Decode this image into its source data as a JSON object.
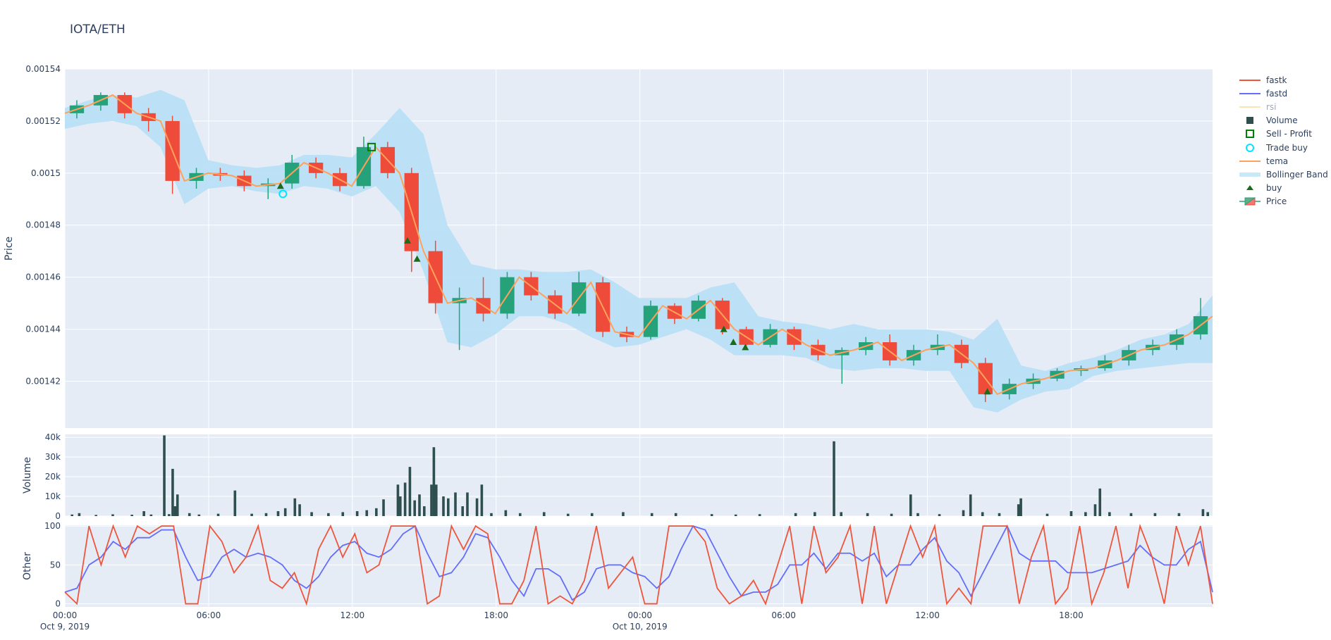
{
  "title": "IOTA/ETH",
  "colors": {
    "increasing": "#26a27b",
    "decreasing": "#ef4b3a",
    "tema": "#ffa15a",
    "bollinger": "#b9e0f5",
    "volume": "#2f4f4f",
    "fastk": "#ef553b",
    "fastd": "#636efa",
    "rsi": "#ffe4b3",
    "buy": "#1a6b1a",
    "trade_buy": "#00e5ff",
    "sell_profit": "#008000",
    "plot_bg": "#e5ecf6"
  },
  "legend": [
    {
      "name": "fastk",
      "symbol": "line",
      "color": "#ef553b"
    },
    {
      "name": "fastd",
      "symbol": "line",
      "color": "#636efa"
    },
    {
      "name": "rsi",
      "symbol": "line",
      "color": "#ffe4b3",
      "hidden": true
    },
    {
      "name": "Volume",
      "symbol": "square",
      "color": "#2f4f4f"
    },
    {
      "name": "Sell - Profit",
      "symbol": "square-open",
      "color": "#008000"
    },
    {
      "name": "Trade buy",
      "symbol": "circle-open",
      "color": "#00e5ff"
    },
    {
      "name": "tema",
      "symbol": "line",
      "color": "#ffa15a"
    },
    {
      "name": "Bollinger Band",
      "symbol": "band",
      "color": "#c8e9f8"
    },
    {
      "name": "buy",
      "symbol": "triangle-up",
      "color": "#1a6b1a"
    },
    {
      "name": "Price",
      "symbol": "candle",
      "color": "#26a27b"
    }
  ],
  "chart_data": {
    "type": "candlestick",
    "grid": true,
    "legend_position": "right",
    "x_axis": {
      "unit": "hours since Oct 9, 2019 00:00",
      "range": [
        0,
        47.9
      ],
      "ticks": [
        {
          "value": 0,
          "label": "00:00",
          "sub": "Oct 9, 2019"
        },
        {
          "value": 6,
          "label": "06:00",
          "sub": ""
        },
        {
          "value": 12,
          "label": "12:00",
          "sub": ""
        },
        {
          "value": 18,
          "label": "18:00",
          "sub": ""
        },
        {
          "value": 24,
          "label": "00:00",
          "sub": "Oct 10, 2019"
        },
        {
          "value": 30,
          "label": "06:00",
          "sub": ""
        },
        {
          "value": 36,
          "label": "12:00",
          "sub": ""
        },
        {
          "value": 42,
          "label": "18:00",
          "sub": ""
        }
      ]
    },
    "price_panel": {
      "ylabel": "Price",
      "ylim": [
        0.001402,
        0.00154
      ],
      "yticks": [
        "0.00142",
        "0.00144",
        "0.00146",
        "0.00148",
        "0.0015",
        "0.00152",
        "0.00154"
      ],
      "candles_ohlc": [
        [
          0.001523,
          0.001528,
          0.001521,
          0.001526
        ],
        [
          0.001526,
          0.001531,
          0.001524,
          0.00153
        ],
        [
          0.00153,
          0.001531,
          0.001521,
          0.001523
        ],
        [
          0.001523,
          0.001525,
          0.001516,
          0.00152
        ],
        [
          0.00152,
          0.001522,
          0.001492,
          0.001497
        ],
        [
          0.001497,
          0.001502,
          0.001494,
          0.0015
        ],
        [
          0.0015,
          0.001502,
          0.001497,
          0.001499
        ],
        [
          0.001499,
          0.001501,
          0.001493,
          0.001495
        ],
        [
          0.001495,
          0.001498,
          0.00149,
          0.001496
        ],
        [
          0.001496,
          0.001507,
          0.001494,
          0.001504
        ],
        [
          0.001504,
          0.001506,
          0.001498,
          0.0015
        ],
        [
          0.0015,
          0.001502,
          0.001493,
          0.001495
        ],
        [
          0.001495,
          0.001514,
          0.001494,
          0.00151
        ],
        [
          0.00151,
          0.001512,
          0.001498,
          0.0015
        ],
        [
          0.0015,
          0.001502,
          0.001462,
          0.00147
        ],
        [
          0.00147,
          0.001474,
          0.001446,
          0.00145
        ],
        [
          0.00145,
          0.001456,
          0.001432,
          0.001452
        ],
        [
          0.001452,
          0.00146,
          0.001443,
          0.001446
        ],
        [
          0.001446,
          0.001462,
          0.001444,
          0.00146
        ],
        [
          0.00146,
          0.001462,
          0.001451,
          0.001453
        ],
        [
          0.001453,
          0.001455,
          0.001444,
          0.001446
        ],
        [
          0.001446,
          0.001462,
          0.001445,
          0.001458
        ],
        [
          0.001458,
          0.00146,
          0.001437,
          0.001439
        ],
        [
          0.001439,
          0.001441,
          0.001435,
          0.001437
        ],
        [
          0.001437,
          0.001451,
          0.001436,
          0.001449
        ],
        [
          0.001449,
          0.00145,
          0.001442,
          0.001444
        ],
        [
          0.001444,
          0.001453,
          0.001443,
          0.001451
        ],
        [
          0.001451,
          0.001452,
          0.001438,
          0.00144
        ],
        [
          0.00144,
          0.001441,
          0.001432,
          0.001434
        ],
        [
          0.001434,
          0.001442,
          0.001433,
          0.00144
        ],
        [
          0.00144,
          0.001441,
          0.001432,
          0.001434
        ],
        [
          0.001434,
          0.001436,
          0.001428,
          0.00143
        ],
        [
          0.00143,
          0.001433,
          0.001419,
          0.001432
        ],
        [
          0.001432,
          0.001437,
          0.00143,
          0.001435
        ],
        [
          0.001435,
          0.001438,
          0.001426,
          0.001428
        ],
        [
          0.001428,
          0.001434,
          0.001426,
          0.001432
        ],
        [
          0.001432,
          0.001438,
          0.00143,
          0.001434
        ],
        [
          0.001434,
          0.001436,
          0.001425,
          0.001427
        ],
        [
          0.001427,
          0.001429,
          0.001412,
          0.001415
        ],
        [
          0.001415,
          0.001421,
          0.001413,
          0.001419
        ],
        [
          0.001419,
          0.001423,
          0.001417,
          0.001421
        ],
        [
          0.001421,
          0.001425,
          0.00142,
          0.001424
        ],
        [
          0.001424,
          0.001426,
          0.001422,
          0.001425
        ],
        [
          0.001425,
          0.00143,
          0.001424,
          0.001428
        ],
        [
          0.001428,
          0.001434,
          0.001426,
          0.001432
        ],
        [
          0.001432,
          0.001436,
          0.00143,
          0.001434
        ],
        [
          0.001434,
          0.00144,
          0.001432,
          0.001438
        ],
        [
          0.001438,
          0.001452,
          0.001436,
          0.001445
        ]
      ],
      "tema": [
        0.001523,
        0.001526,
        0.00153,
        0.001523,
        0.00152,
        0.001497,
        0.0015,
        0.001499,
        0.001495,
        0.001496,
        0.001504,
        0.0015,
        0.001495,
        0.00151,
        0.0015,
        0.00147,
        0.00145,
        0.001452,
        0.001446,
        0.00146,
        0.001453,
        0.001446,
        0.001458,
        0.001439,
        0.001437,
        0.001449,
        0.001444,
        0.001451,
        0.00144,
        0.001434,
        0.00144,
        0.001434,
        0.00143,
        0.001432,
        0.001435,
        0.001428,
        0.001432,
        0.001434,
        0.001427,
        0.001415,
        0.001419,
        0.001421,
        0.001424,
        0.001425,
        0.001428,
        0.001432,
        0.001434,
        0.001438,
        0.001445
      ],
      "bollinger_upper": [
        0.001525,
        0.001528,
        0.00153,
        0.001529,
        0.001532,
        0.001528,
        0.001505,
        0.001503,
        0.001502,
        0.001503,
        0.001507,
        0.001507,
        0.001506,
        0.001515,
        0.001525,
        0.001515,
        0.00148,
        0.001465,
        0.001463,
        0.001463,
        0.001462,
        0.001462,
        0.001463,
        0.001458,
        0.001452,
        0.001452,
        0.001452,
        0.001456,
        0.001458,
        0.001445,
        0.001443,
        0.001442,
        0.00144,
        0.001442,
        0.00144,
        0.00144,
        0.00144,
        0.001439,
        0.001436,
        0.001444,
        0.001426,
        0.001424,
        0.001427,
        0.001429,
        0.001432,
        0.001436,
        0.001438,
        0.001442,
        0.001453
      ],
      "bollinger_lower": [
        0.001517,
        0.001519,
        0.00152,
        0.001518,
        0.00151,
        0.001488,
        0.001494,
        0.001495,
        0.001493,
        0.001492,
        0.001495,
        0.001494,
        0.001491,
        0.001495,
        0.001485,
        0.001462,
        0.001435,
        0.001433,
        0.001438,
        0.001445,
        0.001445,
        0.001442,
        0.001437,
        0.001433,
        0.001434,
        0.001437,
        0.00144,
        0.001436,
        0.00143,
        0.00143,
        0.00143,
        0.001429,
        0.001425,
        0.001424,
        0.001425,
        0.001425,
        0.001424,
        0.001424,
        0.00141,
        0.001408,
        0.001413,
        0.001416,
        0.001417,
        0.001422,
        0.001424,
        0.001425,
        0.001426,
        0.001427,
        0.001427
      ],
      "buy": [
        [
          9.0,
          0.001495
        ],
        [
          14.3,
          0.001474
        ],
        [
          14.7,
          0.001467
        ],
        [
          27.5,
          0.00144
        ],
        [
          27.9,
          0.001435
        ],
        [
          28.4,
          0.001433
        ],
        [
          38.5,
          0.001416
        ]
      ],
      "trade_buy": [
        [
          9.1,
          0.001492
        ]
      ],
      "sell_profit": [
        [
          12.8,
          0.00151
        ]
      ]
    },
    "volume_panel": {
      "ylabel": "Volume",
      "ylim": [
        0,
        41500
      ],
      "yticks": [
        "0",
        "10k",
        "20k",
        "30k",
        "40k"
      ],
      "bars": [
        [
          0.3,
          800
        ],
        [
          0.6,
          1500
        ],
        [
          1.3,
          600
        ],
        [
          2.0,
          900
        ],
        [
          2.8,
          700
        ],
        [
          3.3,
          2500
        ],
        [
          3.6,
          800
        ],
        [
          4.15,
          41000
        ],
        [
          4.35,
          1000
        ],
        [
          4.5,
          24000
        ],
        [
          4.6,
          5000
        ],
        [
          4.7,
          11000
        ],
        [
          5.2,
          1500
        ],
        [
          5.6,
          800
        ],
        [
          6.4,
          1200
        ],
        [
          7.1,
          13000
        ],
        [
          7.8,
          1200
        ],
        [
          8.4,
          1500
        ],
        [
          8.9,
          2500
        ],
        [
          9.2,
          4000
        ],
        [
          9.6,
          9000
        ],
        [
          9.8,
          6000
        ],
        [
          10.3,
          2000
        ],
        [
          11.0,
          1500
        ],
        [
          11.6,
          2000
        ],
        [
          12.2,
          2500
        ],
        [
          12.6,
          3000
        ],
        [
          13.0,
          4000
        ],
        [
          13.3,
          8500
        ],
        [
          13.9,
          16000
        ],
        [
          14.0,
          10000
        ],
        [
          14.2,
          17000
        ],
        [
          14.4,
          25000
        ],
        [
          14.6,
          8000
        ],
        [
          14.8,
          11000
        ],
        [
          15.0,
          5000
        ],
        [
          15.3,
          16000
        ],
        [
          15.4,
          35000
        ],
        [
          15.5,
          16000
        ],
        [
          15.8,
          10000
        ],
        [
          16.0,
          9000
        ],
        [
          16.3,
          12000
        ],
        [
          16.6,
          5000
        ],
        [
          16.8,
          12000
        ],
        [
          17.2,
          9000
        ],
        [
          17.4,
          16000
        ],
        [
          17.8,
          1500
        ],
        [
          18.4,
          3000
        ],
        [
          19.0,
          1500
        ],
        [
          20.0,
          2000
        ],
        [
          21.0,
          1200
        ],
        [
          22.0,
          1500
        ],
        [
          23.3,
          2000
        ],
        [
          24.5,
          1500
        ],
        [
          25.5,
          1500
        ],
        [
          27.0,
          1000
        ],
        [
          28.0,
          800
        ],
        [
          29.0,
          1000
        ],
        [
          30.5,
          1500
        ],
        [
          31.3,
          2000
        ],
        [
          32.1,
          38000
        ],
        [
          32.4,
          2000
        ],
        [
          33.5,
          1500
        ],
        [
          34.5,
          1200
        ],
        [
          35.3,
          11000
        ],
        [
          35.6,
          1500
        ],
        [
          36.5,
          1000
        ],
        [
          37.5,
          3000
        ],
        [
          37.8,
          11000
        ],
        [
          38.3,
          2000
        ],
        [
          39.0,
          1500
        ],
        [
          39.8,
          6000
        ],
        [
          39.9,
          9000
        ],
        [
          41.0,
          1200
        ],
        [
          42.0,
          2500
        ],
        [
          42.6,
          2000
        ],
        [
          43.0,
          6000
        ],
        [
          43.2,
          14000
        ],
        [
          43.6,
          2000
        ],
        [
          44.5,
          1500
        ],
        [
          45.5,
          1500
        ],
        [
          46.5,
          1500
        ],
        [
          47.5,
          3500
        ],
        [
          47.7,
          2000
        ]
      ]
    },
    "oscillator_panel": {
      "ylabel": "Other",
      "ylim": [
        -4,
        101
      ],
      "yticks": [
        "0",
        "50",
        "100"
      ],
      "fastk": [
        15,
        0,
        100,
        50,
        100,
        60,
        100,
        90,
        100,
        100,
        0,
        0,
        100,
        80,
        40,
        60,
        100,
        30,
        20,
        40,
        0,
        70,
        100,
        60,
        90,
        40,
        50,
        100,
        100,
        100,
        0,
        10,
        100,
        70,
        100,
        90,
        0,
        0,
        30,
        100,
        0,
        10,
        0,
        30,
        100,
        20,
        40,
        60,
        0,
        0,
        100,
        100,
        100,
        80,
        20,
        0,
        10,
        30,
        0,
        50,
        100,
        0,
        100,
        40,
        60,
        100,
        0,
        100,
        0,
        50,
        100,
        60,
        100,
        0,
        20,
        0,
        100,
        100,
        100,
        0,
        60,
        100,
        0,
        20,
        100,
        0,
        40,
        100,
        20,
        100,
        60,
        0,
        100,
        50,
        100,
        0
      ],
      "fastd": [
        15,
        20,
        50,
        60,
        80,
        70,
        85,
        85,
        95,
        95,
        60,
        30,
        35,
        60,
        70,
        60,
        65,
        60,
        50,
        30,
        20,
        35,
        60,
        75,
        80,
        65,
        60,
        70,
        90,
        100,
        65,
        35,
        40,
        60,
        90,
        85,
        60,
        30,
        10,
        45,
        45,
        35,
        5,
        15,
        45,
        50,
        50,
        40,
        35,
        20,
        35,
        70,
        100,
        95,
        65,
        35,
        10,
        15,
        15,
        25,
        50,
        50,
        65,
        45,
        65,
        65,
        55,
        65,
        35,
        50,
        50,
        70,
        85,
        55,
        40,
        10,
        40,
        70,
        100,
        65,
        55,
        55,
        55,
        40,
        40,
        40,
        45,
        50,
        55,
        75,
        60,
        50,
        50,
        70,
        80,
        15
      ]
    }
  }
}
